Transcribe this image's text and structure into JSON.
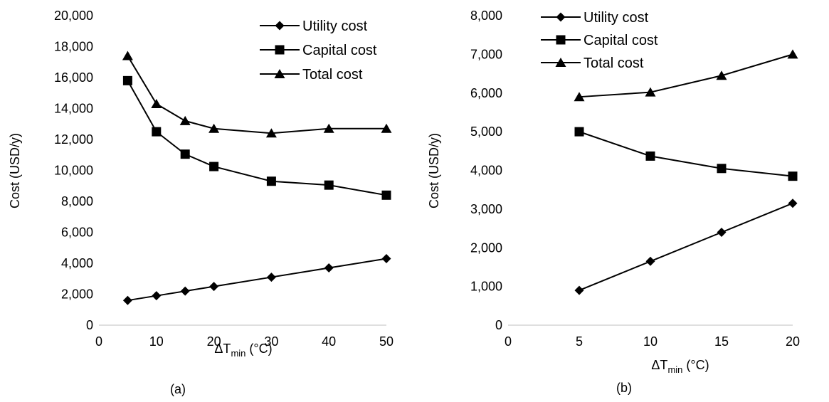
{
  "chart_data": [
    {
      "type": "line",
      "panel_label": "(a)",
      "xlabel": {
        "main": "ΔT",
        "sub": "min",
        "unit": "(°C)"
      },
      "ylabel": "Cost (USD/y)",
      "xlim": [
        0,
        50
      ],
      "ylim": [
        0,
        20000
      ],
      "x_ticks": [
        0,
        10,
        20,
        30,
        40,
        50
      ],
      "y_ticks": [
        0,
        2000,
        4000,
        6000,
        8000,
        10000,
        12000,
        14000,
        16000,
        18000,
        20000
      ],
      "x_tick_labels": [
        "0",
        "10",
        "20",
        "30",
        "40",
        "50"
      ],
      "y_tick_labels": [
        "0",
        "2,000",
        "4,000",
        "6,000",
        "8,000",
        "10,000",
        "12,000",
        "14,000",
        "16,000",
        "18,000",
        "20,000"
      ],
      "grid": false,
      "legend_position": "top-right",
      "x": [
        5,
        10,
        15,
        20,
        30,
        40,
        50
      ],
      "series": [
        {
          "name": "Utility cost",
          "marker": "diamond",
          "values": [
            1600,
            1900,
            2200,
            2500,
            3100,
            3700,
            4300
          ]
        },
        {
          "name": "Capital cost",
          "marker": "square",
          "values": [
            15800,
            12500,
            11050,
            10250,
            9300,
            9050,
            8400
          ]
        },
        {
          "name": "Total cost",
          "marker": "triangle",
          "values": [
            17400,
            14300,
            13200,
            12700,
            12400,
            12700,
            12700
          ]
        }
      ]
    },
    {
      "type": "line",
      "panel_label": "(b)",
      "xlabel": {
        "main": "ΔT",
        "sub": "min",
        "unit": "(°C)"
      },
      "ylabel": "Cost (USD/y)",
      "xlim": [
        0,
        20
      ],
      "ylim": [
        0,
        8000
      ],
      "x_ticks": [
        0,
        5,
        10,
        15,
        20
      ],
      "y_ticks": [
        0,
        1000,
        2000,
        3000,
        4000,
        5000,
        6000,
        7000,
        8000
      ],
      "x_tick_labels": [
        "0",
        "5",
        "10",
        "15",
        "20"
      ],
      "y_tick_labels": [
        "0",
        "1,000",
        "2,000",
        "3,000",
        "4,000",
        "5,000",
        "6,000",
        "7,000",
        "8,000"
      ],
      "grid": false,
      "legend_position": "top-left",
      "x": [
        5,
        10,
        15,
        20
      ],
      "series": [
        {
          "name": "Utility cost",
          "marker": "diamond",
          "values": [
            900,
            1650,
            2400,
            3150
          ]
        },
        {
          "name": "Capital cost",
          "marker": "square",
          "values": [
            5000,
            4370,
            4050,
            3850
          ]
        },
        {
          "name": "Total cost",
          "marker": "triangle",
          "values": [
            5900,
            6020,
            6450,
            7000
          ]
        }
      ]
    }
  ]
}
